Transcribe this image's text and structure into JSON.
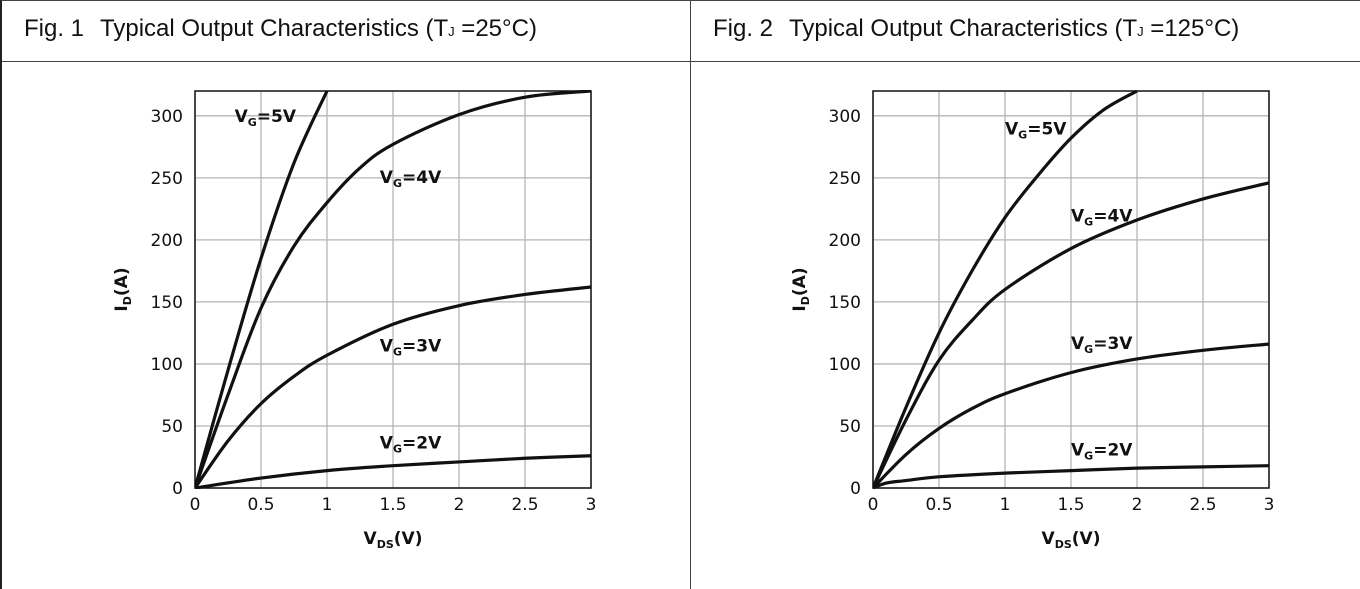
{
  "panels": [
    {
      "fig_no": "Fig. 1",
      "title_pre": "Typical Output Characteristics (T",
      "title_sub": "J",
      "title_post": " =25°C)"
    },
    {
      "fig_no": "Fig. 2",
      "title_pre": "Typical Output Characteristics (T",
      "title_sub": "J",
      "title_post": " =125°C)"
    }
  ],
  "chart_data": [
    {
      "type": "line",
      "title": "Typical Output Characteristics (TJ =25°C)",
      "xlabel": "VDS(V)",
      "ylabel": "ID(A)",
      "xlim": [
        0,
        3
      ],
      "ylim": [
        0,
        320
      ],
      "xticks": [
        "0",
        "0.5",
        "1",
        "1.5",
        "2",
        "2.5",
        "3"
      ],
      "yticks": [
        "0",
        "50",
        "100",
        "150",
        "200",
        "250",
        "300"
      ],
      "grid": true,
      "series": [
        {
          "name": "VG=5V",
          "x": [
            0,
            0.25,
            0.5,
            0.75,
            1.0
          ],
          "y": [
            0,
            95,
            185,
            262,
            320
          ]
        },
        {
          "name": "VG=4V",
          "x": [
            0,
            0.25,
            0.5,
            0.75,
            1.0,
            1.25,
            1.5,
            2.0,
            2.5,
            3.0
          ],
          "y": [
            0,
            75,
            145,
            195,
            230,
            258,
            277,
            301,
            315,
            320
          ]
        },
        {
          "name": "VG=3V",
          "x": [
            0,
            0.25,
            0.5,
            0.75,
            1.0,
            1.5,
            2.0,
            2.5,
            3.0
          ],
          "y": [
            0,
            38,
            68,
            90,
            107,
            132,
            147,
            156,
            162
          ]
        },
        {
          "name": "VG=2V",
          "x": [
            0,
            0.5,
            1.0,
            1.5,
            2.0,
            2.5,
            3.0
          ],
          "y": [
            0,
            8,
            14,
            18,
            21,
            24,
            26
          ]
        }
      ],
      "curve_labels": [
        {
          "series": "VG=5V",
          "at": [
            0.3,
            295
          ]
        },
        {
          "series": "VG=4V",
          "at": [
            1.4,
            246
          ]
        },
        {
          "series": "VG=3V",
          "at": [
            1.4,
            110
          ]
        },
        {
          "series": "VG=2V",
          "at": [
            1.4,
            32
          ]
        }
      ]
    },
    {
      "type": "line",
      "title": "Typical Output Characteristics (TJ =125°C)",
      "xlabel": "VDS(V)",
      "ylabel": "ID(A)",
      "xlim": [
        0,
        3
      ],
      "ylim": [
        0,
        320
      ],
      "xticks": [
        "0",
        "0.5",
        "1",
        "1.5",
        "2",
        "2.5",
        "3"
      ],
      "yticks": [
        "0",
        "50",
        "100",
        "150",
        "200",
        "250",
        "300"
      ],
      "grid": true,
      "series": [
        {
          "name": "VG=5V",
          "x": [
            0,
            0.25,
            0.5,
            0.75,
            1.0,
            1.25,
            1.5,
            1.75,
            2.0
          ],
          "y": [
            0,
            65,
            125,
            175,
            218,
            252,
            282,
            305,
            320
          ]
        },
        {
          "name": "VG=4V",
          "x": [
            0,
            0.25,
            0.5,
            0.75,
            1.0,
            1.5,
            2.0,
            2.5,
            3.0
          ],
          "y": [
            0,
            55,
            103,
            135,
            160,
            193,
            216,
            233,
            246
          ]
        },
        {
          "name": "VG=3V",
          "x": [
            0,
            0.25,
            0.5,
            0.75,
            1.0,
            1.5,
            2.0,
            2.5,
            3.0
          ],
          "y": [
            0,
            27,
            48,
            64,
            76,
            93,
            104,
            111,
            116
          ]
        },
        {
          "name": "VG=2V",
          "x": [
            0,
            0.1,
            0.25,
            0.5,
            1.0,
            1.5,
            2.0,
            2.5,
            3.0
          ],
          "y": [
            0,
            4,
            6,
            9,
            12,
            14,
            16,
            17,
            18
          ]
        }
      ],
      "curve_labels": [
        {
          "series": "VG=5V",
          "at": [
            1.0,
            285
          ]
        },
        {
          "series": "VG=4V",
          "at": [
            1.5,
            215
          ]
        },
        {
          "series": "VG=3V",
          "at": [
            1.5,
            112
          ]
        },
        {
          "series": "VG=2V",
          "at": [
            1.5,
            26
          ]
        }
      ]
    }
  ]
}
